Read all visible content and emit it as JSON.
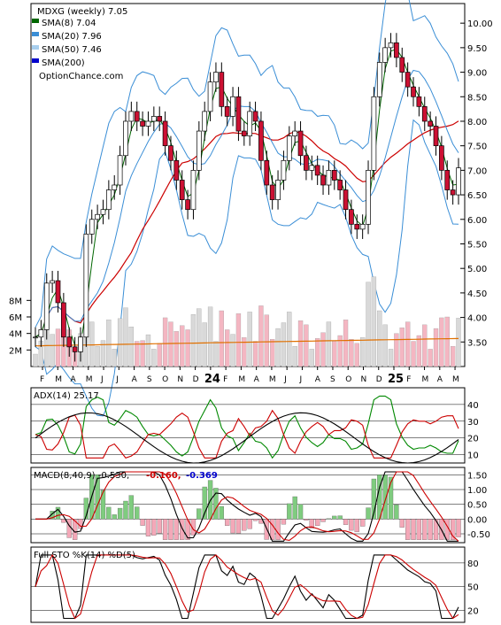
{
  "chart_data": [
    {
      "type": "candlestick",
      "title": "MDXG (weekly) 7.05",
      "legend": [
        {
          "label": "SMA(8) 7.04",
          "color": "#006600"
        },
        {
          "label": "SMA(20) 7.96",
          "color": "#3a8ed6"
        },
        {
          "label": "SMA(50) 7.46",
          "color": "#a8cfee"
        },
        {
          "label": "SMA(200)",
          "color": "#0000cc"
        }
      ],
      "watermark": "OptionChance.com",
      "ylim": [
        3.0,
        10.4
      ],
      "yticks": [
        "10.00",
        "9.50",
        "9.00",
        "8.50",
        "8.00",
        "7.50",
        "7.00",
        "6.50",
        "6.00",
        "5.50",
        "5.00",
        "4.50",
        "4.00",
        "3.50"
      ],
      "close_path": [
        3.6,
        3.75,
        4.7,
        4.75,
        4.3,
        3.6,
        3.4,
        3.3,
        3.6,
        5.7,
        6.0,
        6.1,
        6.2,
        6.6,
        6.7,
        7.3,
        8.0,
        8.2,
        8.0,
        7.9,
        8.0,
        8.1,
        8.0,
        7.5,
        7.2,
        6.8,
        6.4,
        6.2,
        7.0,
        7.8,
        8.2,
        8.8,
        9.0,
        8.3,
        8.1,
        8.5,
        7.8,
        7.7,
        8.2,
        8.0,
        7.2,
        6.7,
        6.4,
        6.8,
        7.2,
        7.7,
        7.8,
        7.3,
        7.0,
        7.1,
        6.9,
        6.7,
        7.0,
        6.8,
        6.6,
        6.2,
        5.9,
        5.8,
        5.9,
        7.0,
        8.5,
        9.2,
        9.5,
        9.6,
        9.3,
        9.0,
        8.7,
        8.5,
        8.3,
        8.0,
        7.9,
        7.5,
        7.0,
        6.6,
        6.5,
        7.05
      ],
      "volume": {
        "yticks": [
          "8M",
          "6M",
          "4M",
          "2M"
        ],
        "ylim": [
          0,
          9
        ]
      },
      "x_axis_labels": [
        "F",
        "M",
        "A",
        "M",
        "J",
        "J",
        "A",
        "S",
        "O",
        "N",
        "D",
        "24",
        "F",
        "M",
        "A",
        "M",
        "J",
        "J",
        "A",
        "S",
        "O",
        "N",
        "D",
        "25",
        "F",
        "M",
        "A",
        "M"
      ]
    },
    {
      "type": "line",
      "title": "ADX(14) 25.17",
      "yticks": [
        "40",
        "30",
        "20",
        "10"
      ],
      "ylim": [
        5,
        50
      ]
    },
    {
      "type": "line",
      "title": "MACD(8,40,9) -0.530,",
      "values_printed": [
        {
          "text": "-0.160,",
          "color": "#cc0000"
        },
        {
          "text": "-0.369",
          "color": "#0000cc"
        }
      ],
      "yticks": [
        "1.50",
        "1.00",
        "0.50",
        "0.00",
        "-0.50"
      ],
      "ylim": [
        -0.8,
        1.75
      ]
    },
    {
      "type": "line",
      "title": "Full STO %K(14) %D(5)",
      "yticks": [
        "80",
        "50",
        "20"
      ],
      "ylim": [
        5,
        100
      ]
    }
  ]
}
